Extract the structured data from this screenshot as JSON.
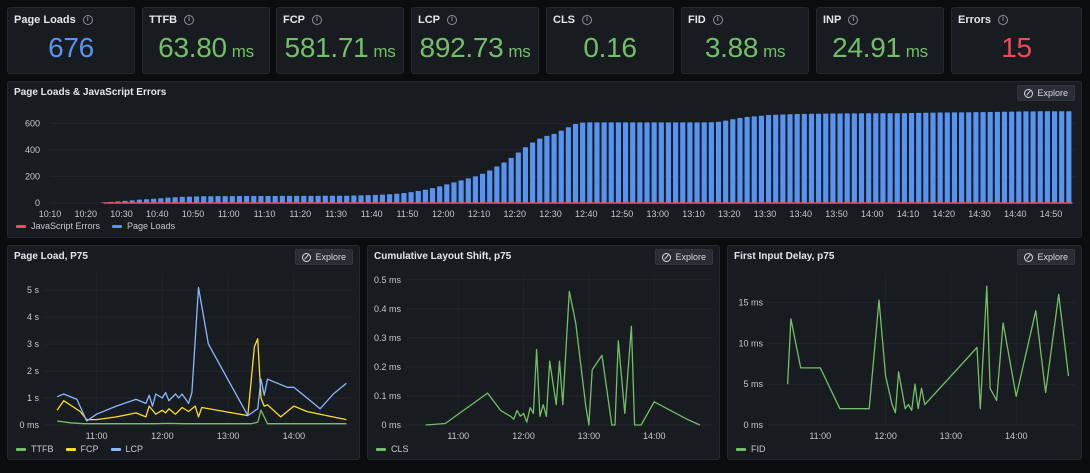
{
  "stats": [
    {
      "title": "Page Loads",
      "value": "676",
      "unit": "",
      "color": "#5794f2"
    },
    {
      "title": "TTFB",
      "value": "63.80",
      "unit": "ms",
      "color": "#73bf69"
    },
    {
      "title": "FCP",
      "value": "581.71",
      "unit": "ms",
      "color": "#73bf69"
    },
    {
      "title": "LCP",
      "value": "892.73",
      "unit": "ms",
      "color": "#73bf69"
    },
    {
      "title": "CLS",
      "value": "0.16",
      "unit": "",
      "color": "#73bf69"
    },
    {
      "title": "FID",
      "value": "3.88",
      "unit": "ms",
      "color": "#73bf69"
    },
    {
      "title": "INP",
      "value": "24.91",
      "unit": "ms",
      "color": "#73bf69"
    },
    {
      "title": "Errors",
      "value": "15",
      "unit": "",
      "color": "#f2495c"
    }
  ],
  "explore_label": "Explore",
  "panels": {
    "loads": {
      "title": "Page Loads & JavaScript Errors"
    },
    "pageload": {
      "title": "Page Load, P75"
    },
    "cls": {
      "title": "Cumulative Layout Shift, p75"
    },
    "fid": {
      "title": "First Input Delay, p75"
    }
  },
  "chart_data": [
    {
      "type": "bar",
      "title": "Page Loads & JavaScript Errors",
      "ylim": [
        0,
        700
      ],
      "yticks": [
        0,
        200,
        400,
        600
      ],
      "xticks": [
        "10:10",
        "10:20",
        "10:30",
        "10:40",
        "10:50",
        "11:00",
        "11:10",
        "11:20",
        "11:30",
        "11:40",
        "11:50",
        "12:00",
        "12:10",
        "12:20",
        "12:30",
        "12:40",
        "12:50",
        "13:00",
        "13:10",
        "13:20",
        "13:30",
        "13:40",
        "13:50",
        "14:00",
        "14:10",
        "14:20",
        "14:30",
        "14:40",
        "14:50"
      ],
      "x_range_minutes": [
        0,
        287
      ],
      "series": [
        {
          "name": "JavaScript Errors",
          "color": "#f2495c",
          "x": [
            15,
            286
          ],
          "values": [
            0,
            0
          ]
        },
        {
          "name": "Page Loads",
          "color": "#5794f2",
          "x": [
            15,
            17,
            19,
            21,
            23,
            25,
            27,
            29,
            31,
            33,
            35,
            37,
            39,
            41,
            43,
            45,
            47,
            49,
            51,
            53,
            55,
            57,
            59,
            61,
            63,
            65,
            67,
            69,
            71,
            73,
            75,
            77,
            79,
            81,
            83,
            85,
            87,
            89,
            91,
            93,
            95,
            97,
            99,
            101,
            103,
            105,
            107,
            109,
            111,
            113,
            115,
            117,
            119,
            121,
            123,
            125,
            127,
            129,
            131,
            133,
            135,
            137,
            139,
            141,
            143,
            145,
            147,
            149,
            151,
            153,
            155,
            157,
            159,
            161,
            163,
            165,
            167,
            169,
            171,
            173,
            175,
            177,
            179,
            181,
            183,
            185,
            187,
            189,
            191,
            193,
            195,
            197,
            199,
            201,
            203,
            205,
            207,
            209,
            211,
            213,
            215,
            217,
            219,
            221,
            223,
            225,
            227,
            229,
            231,
            233,
            235,
            237,
            239,
            241,
            243,
            245,
            247,
            249,
            251,
            253,
            255,
            257,
            259,
            261,
            263,
            265,
            267,
            269,
            271,
            273,
            275,
            277,
            279,
            281,
            283,
            285
          ],
          "values": [
            5,
            8,
            12,
            16,
            20,
            25,
            28,
            32,
            36,
            40,
            43,
            46,
            48,
            50,
            51,
            51,
            52,
            52,
            52,
            53,
            53,
            53,
            53,
            53,
            53,
            54,
            54,
            54,
            54,
            54,
            54,
            55,
            55,
            55,
            55,
            56,
            57,
            59,
            61,
            63,
            66,
            70,
            75,
            82,
            90,
            100,
            112,
            125,
            140,
            155,
            170,
            185,
            200,
            220,
            245,
            275,
            305,
            340,
            380,
            420,
            455,
            485,
            505,
            520,
            545,
            570,
            595,
            605,
            607,
            607,
            607,
            607,
            607,
            607,
            607,
            607,
            607,
            607,
            607,
            607,
            607,
            607,
            607,
            607,
            607,
            608,
            612,
            620,
            630,
            640,
            647,
            652,
            657,
            662,
            664,
            666,
            668,
            670,
            671,
            672,
            672,
            673,
            674,
            674,
            675,
            675,
            676,
            676,
            676,
            676,
            676,
            676,
            676,
            677,
            678,
            679,
            680,
            681,
            681,
            682,
            682,
            683,
            684,
            684,
            685,
            686,
            687,
            688,
            689,
            690,
            690,
            691,
            691,
            691,
            691,
            691
          ]
        }
      ]
    },
    {
      "type": "line",
      "title": "Page Load, P75",
      "yticks": [
        "0 ms",
        "1 s",
        "2 s",
        "3 s",
        "4 s",
        "5 s"
      ],
      "ylim": [
        0,
        5.6
      ],
      "xticks": [
        "11:00",
        "12:00",
        "13:00",
        "14:00"
      ],
      "x_range_hours": [
        10.2,
        14.9
      ],
      "series": [
        {
          "name": "TTFB",
          "color": "#73bf69",
          "x": [
            10.4,
            10.6,
            10.8,
            11.0,
            11.3,
            11.6,
            11.9,
            12.1,
            12.3,
            12.6,
            12.9,
            13.2,
            13.35,
            13.45,
            13.5,
            13.55,
            13.6,
            13.8,
            14.0,
            14.2,
            14.4,
            14.6,
            14.8
          ],
          "values": [
            0.15,
            0.08,
            0.05,
            0.05,
            0.05,
            0.05,
            0.05,
            0.06,
            0.05,
            0.05,
            0.05,
            0.05,
            0.05,
            0.1,
            0.55,
            0.3,
            0.05,
            0.05,
            0.05,
            0.05,
            0.05,
            0.05,
            0.05
          ]
        },
        {
          "name": "FCP",
          "color": "#fade2a",
          "x": [
            10.4,
            10.5,
            10.75,
            10.85,
            11.0,
            11.3,
            11.6,
            11.75,
            11.8,
            11.9,
            12.0,
            12.05,
            12.1,
            12.2,
            12.3,
            12.4,
            12.5,
            12.55,
            12.6,
            13.3,
            13.4,
            13.45,
            13.5,
            13.55,
            13.6,
            13.8,
            14.0,
            14.2,
            14.5,
            14.8
          ],
          "values": [
            0.55,
            0.9,
            0.5,
            0.2,
            0.2,
            0.3,
            0.45,
            0.3,
            0.7,
            0.4,
            0.55,
            0.45,
            0.6,
            0.4,
            0.65,
            0.5,
            0.7,
            0.3,
            0.65,
            0.35,
            2.9,
            3.2,
            1.0,
            0.7,
            0.75,
            0.3,
            0.7,
            0.5,
            0.35,
            0.2
          ]
        },
        {
          "name": "LCP",
          "color": "#8ab8ff",
          "x": [
            10.4,
            10.5,
            10.7,
            10.85,
            11.0,
            11.3,
            11.6,
            11.75,
            11.8,
            11.85,
            11.9,
            12.0,
            12.05,
            12.1,
            12.2,
            12.25,
            12.3,
            12.4,
            12.45,
            12.55,
            12.6,
            12.7,
            13.3,
            13.45,
            13.5,
            13.55,
            13.6,
            13.9,
            14.0,
            14.2,
            14.4,
            14.6,
            14.8
          ],
          "values": [
            1.05,
            1.15,
            0.95,
            0.15,
            0.4,
            0.7,
            0.95,
            0.8,
            1.1,
            0.7,
            1.15,
            1.0,
            1.2,
            0.9,
            1.15,
            1.0,
            1.15,
            0.8,
            1.2,
            5.1,
            4.4,
            3.0,
            0.35,
            0.6,
            1.7,
            1.1,
            1.7,
            1.4,
            1.4,
            1.0,
            0.6,
            1.15,
            1.55
          ]
        }
      ]
    },
    {
      "type": "line",
      "title": "Cumulative Layout Shift, p75",
      "yticks": [
        "0 ms",
        "0.1 ms",
        "0.2 ms",
        "0.3 ms",
        "0.4 ms",
        "0.5 ms"
      ],
      "ylim": [
        0,
        0.52
      ],
      "xticks": [
        "11:00",
        "12:00",
        "13:00",
        "14:00"
      ],
      "x_range_hours": [
        10.2,
        14.9
      ],
      "series": [
        {
          "name": "CLS",
          "color": "#73bf69",
          "x": [
            10.5,
            10.8,
            11.45,
            11.65,
            11.8,
            11.85,
            11.9,
            11.95,
            12.0,
            12.05,
            12.1,
            12.15,
            12.2,
            12.25,
            12.3,
            12.35,
            12.4,
            12.5,
            12.55,
            12.6,
            12.7,
            12.8,
            12.95,
            13.0,
            13.05,
            13.2,
            13.35,
            13.4,
            13.45,
            13.55,
            13.65,
            13.7,
            13.8,
            14.0,
            14.5,
            14.7
          ],
          "values": [
            0.0,
            0.005,
            0.11,
            0.05,
            0.03,
            0.02,
            0.05,
            0.03,
            0.04,
            0.01,
            0.06,
            0.04,
            0.26,
            0.03,
            0.07,
            0.03,
            0.22,
            0.07,
            0.22,
            0.07,
            0.46,
            0.35,
            0.07,
            0.0,
            0.19,
            0.24,
            0.0,
            0.0,
            0.29,
            0.04,
            0.34,
            0.0,
            0.0,
            0.08,
            0.02,
            0.0
          ]
        }
      ]
    },
    {
      "type": "line",
      "title": "First Input Delay, p75",
      "yticks": [
        "0 ms",
        "5 ms",
        "10 ms",
        "15 ms"
      ],
      "ylim": [
        0,
        18.5
      ],
      "xticks": [
        "11:00",
        "12:00",
        "13:00",
        "14:00"
      ],
      "x_range_hours": [
        10.2,
        14.9
      ],
      "series": [
        {
          "name": "FID",
          "color": "#73bf69",
          "x": [
            10.5,
            10.55,
            10.7,
            11.0,
            11.3,
            11.6,
            11.75,
            11.9,
            12.0,
            12.1,
            12.15,
            12.2,
            12.3,
            12.35,
            12.4,
            12.45,
            12.5,
            12.55,
            12.6,
            13.4,
            13.45,
            13.55,
            13.6,
            13.7,
            13.8,
            14.0,
            14.3,
            14.45,
            14.65,
            14.8
          ],
          "values": [
            5,
            13,
            7,
            7,
            2,
            2,
            2,
            15.3,
            6,
            2.5,
            1.5,
            6.5,
            2,
            2.5,
            1.8,
            5,
            2,
            4.5,
            2.5,
            9.5,
            2,
            17,
            4.5,
            3,
            12.5,
            3.5,
            14,
            4,
            16,
            6
          ]
        }
      ]
    }
  ]
}
